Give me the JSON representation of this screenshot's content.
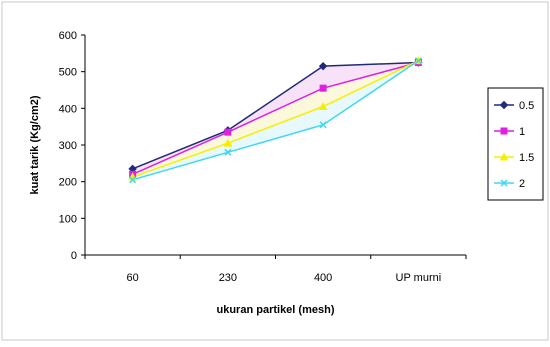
{
  "chart_data": {
    "type": "line",
    "categories": [
      "60",
      "230",
      "400",
      "UP murni"
    ],
    "xlabel": "ukuran partikel (mesh)",
    "ylabel": "kuat tarik (Kg/cm2)",
    "ylim": [
      0,
      600
    ],
    "yticks": [
      0,
      100,
      200,
      300,
      400,
      500,
      600
    ],
    "grid": false,
    "legend_position": "right",
    "series": [
      {
        "name": "0.5",
        "values": [
          235,
          340,
          515,
          525
        ],
        "color": "#1f2a7a",
        "marker": "diamond"
      },
      {
        "name": "1",
        "values": [
          220,
          335,
          455,
          525
        ],
        "color": "#e020e0",
        "marker": "square"
      },
      {
        "name": "1.5",
        "values": [
          213,
          305,
          405,
          530
        ],
        "color": "#f5f000",
        "marker": "triangle"
      },
      {
        "name": "2",
        "values": [
          205,
          280,
          355,
          530
        ],
        "color": "#40d8f0",
        "marker": "x"
      }
    ]
  }
}
